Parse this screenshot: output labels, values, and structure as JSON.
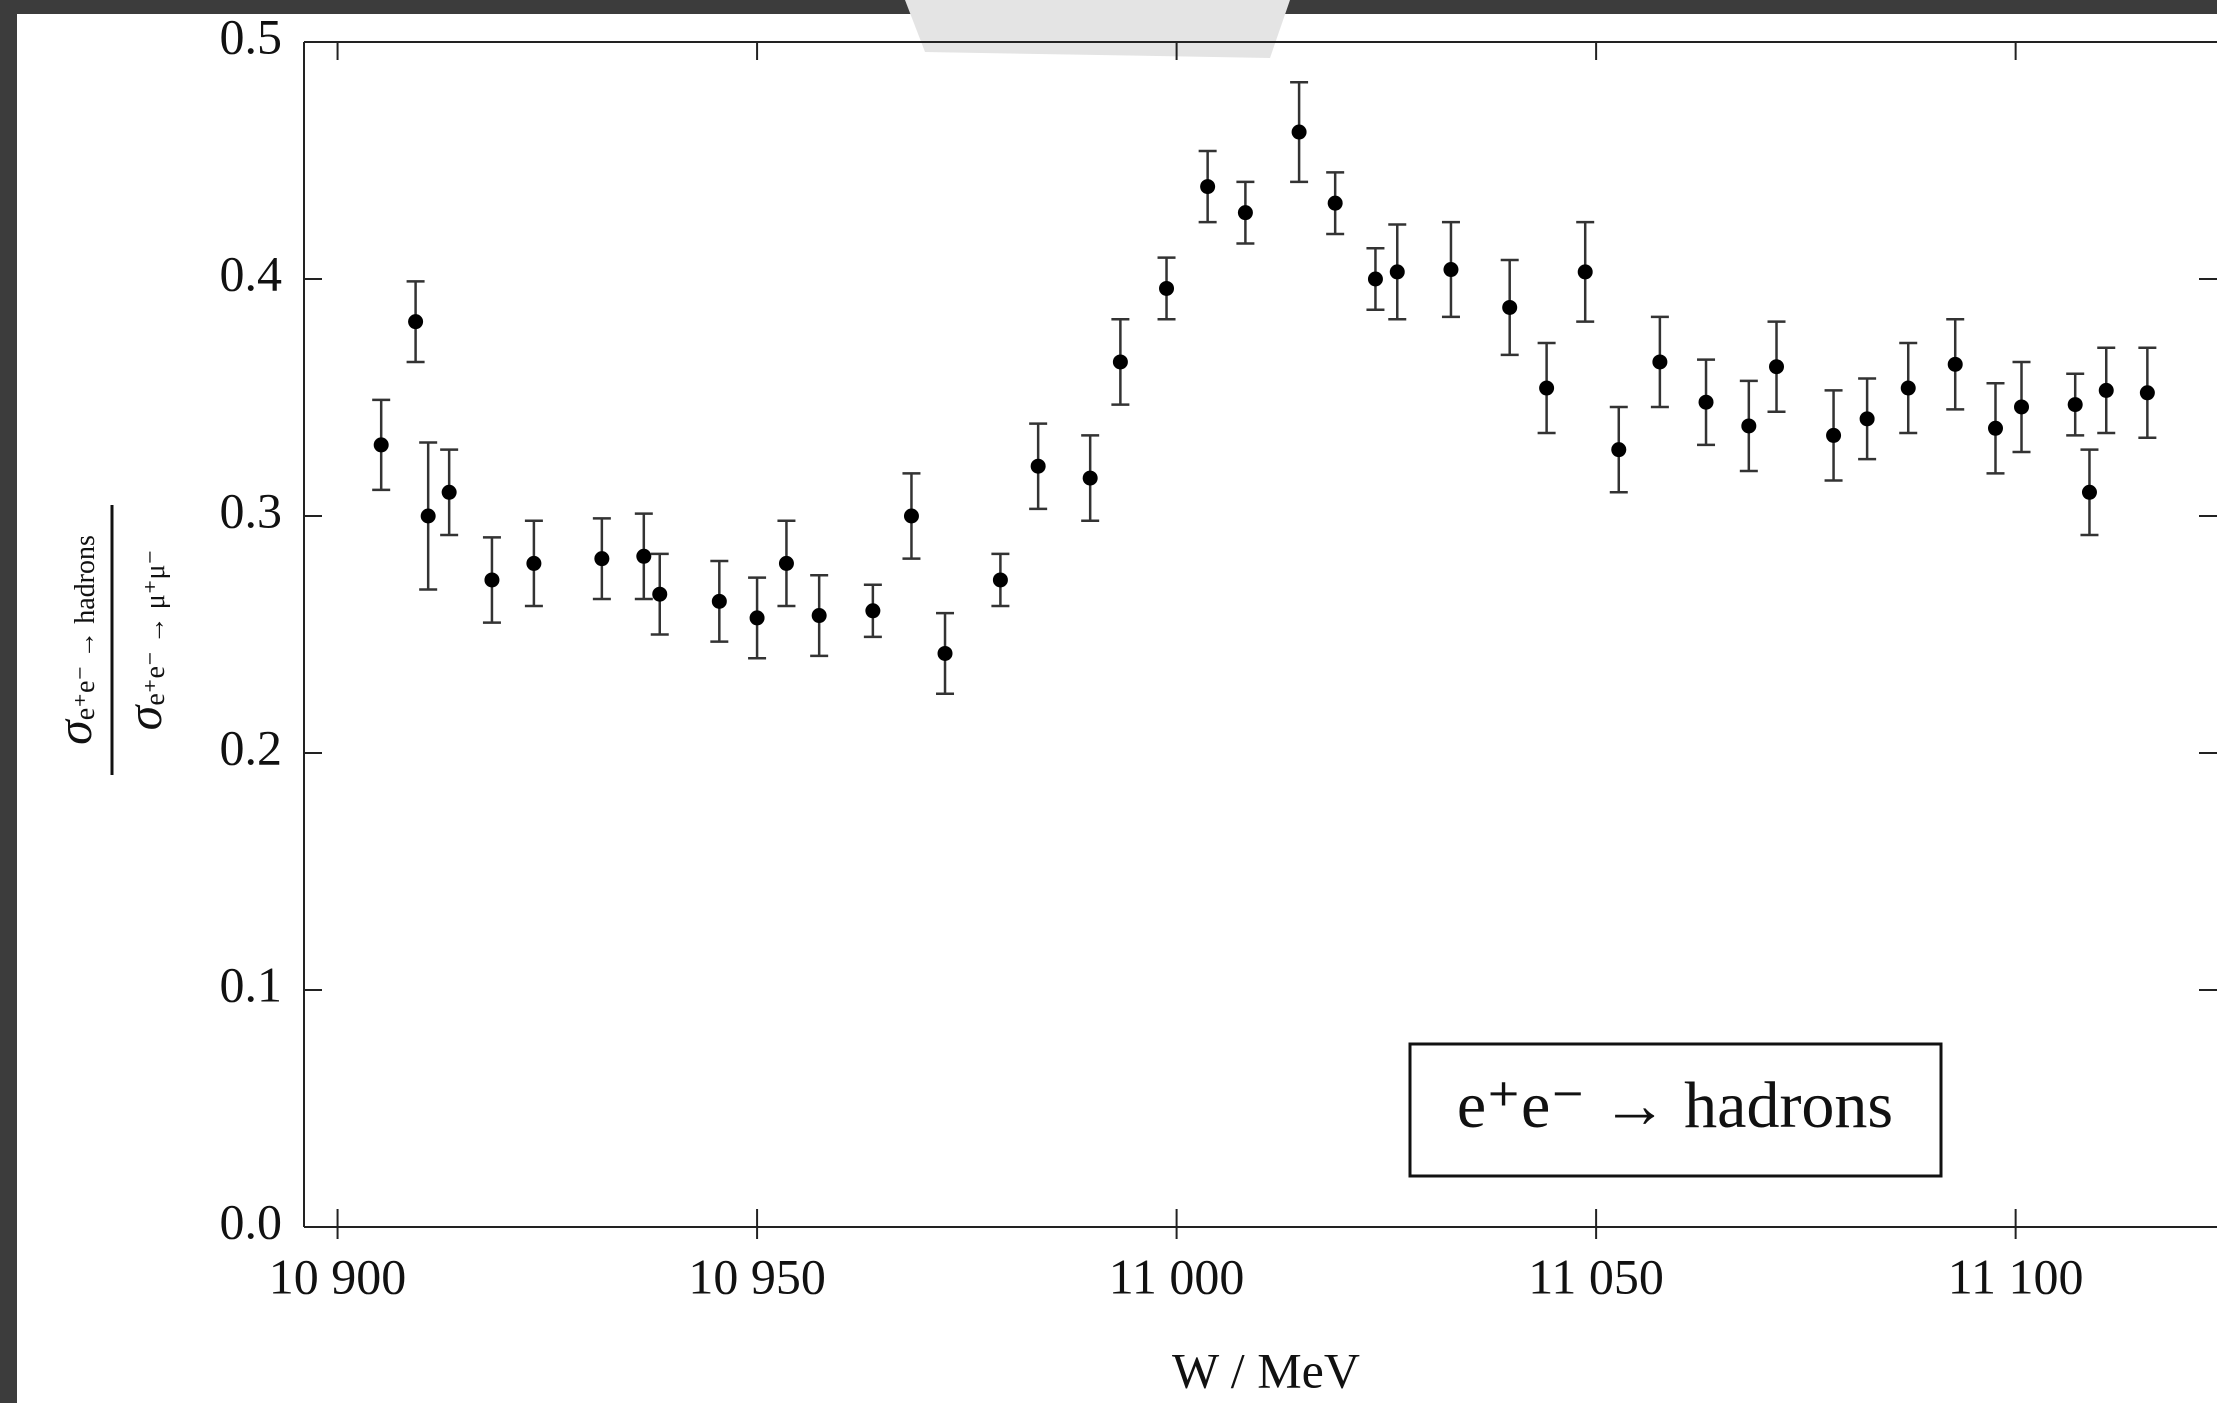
{
  "chart_data": {
    "type": "scatter",
    "xlabel": "W / MeV",
    "ylabel": {
      "numerator": "σ",
      "numerator_sub": "e⁺e⁻ → hadrons",
      "denominator": "σ",
      "denominator_sub": "e⁺e⁻ → μ⁺μ⁻"
    },
    "annotation": "e⁺e⁻ → hadrons",
    "color": "#000000",
    "xlim": [
      10896,
      11124
    ],
    "ylim": [
      0,
      0.5
    ],
    "xticks": [
      {
        "value": 10900,
        "label": "10 900"
      },
      {
        "value": 10950,
        "label": "10 950"
      },
      {
        "value": 11000,
        "label": "11 000"
      },
      {
        "value": 11050,
        "label": "11 050"
      },
      {
        "value": 11100,
        "label": "11 100"
      }
    ],
    "yticks": [
      {
        "value": 0,
        "label": "0.0"
      },
      0.1,
      0.2,
      0.3,
      0.4,
      0.5
    ],
    "x": [
      10905.2,
      10909.3,
      10910.8,
      10913.3,
      10918.4,
      10923.4,
      10931.5,
      10936.5,
      10938.4,
      10945.5,
      10950.0,
      10953.5,
      10957.4,
      10963.8,
      10968.4,
      10972.4,
      10979.0,
      10983.5,
      10989.7,
      10993.3,
      10998.8,
      11003.7,
      11008.2,
      11014.6,
      11018.9,
      11023.7,
      11026.3,
      11032.7,
      11039.7,
      11044.1,
      11048.7,
      11052.7,
      11057.6,
      11063.1,
      11068.2,
      11071.5,
      11078.3,
      11082.3,
      11087.2,
      11092.8,
      11097.6,
      11100.7,
      11107.1,
      11108.8,
      11110.8,
      11115.7
    ],
    "values": [
      0.33,
      0.382,
      0.3,
      0.31,
      0.273,
      0.28,
      0.282,
      0.283,
      0.267,
      0.264,
      0.257,
      0.28,
      0.258,
      0.26,
      0.3,
      0.242,
      0.273,
      0.321,
      0.316,
      0.365,
      0.396,
      0.439,
      0.428,
      0.462,
      0.432,
      0.4,
      0.403,
      0.404,
      0.388,
      0.354,
      0.403,
      0.328,
      0.365,
      0.348,
      0.338,
      0.363,
      0.334,
      0.341,
      0.354,
      0.364,
      0.337,
      0.346,
      0.347,
      0.31,
      0.353,
      0.352
    ],
    "errors": [
      0.019,
      0.017,
      0.031,
      0.018,
      0.018,
      0.018,
      0.017,
      0.018,
      0.017,
      0.017,
      0.017,
      0.018,
      0.017,
      0.011,
      0.018,
      0.017,
      0.011,
      0.018,
      0.018,
      0.018,
      0.013,
      0.015,
      0.013,
      0.021,
      0.013,
      0.013,
      0.02,
      0.02,
      0.02,
      0.019,
      0.021,
      0.018,
      0.019,
      0.018,
      0.019,
      0.019,
      0.019,
      0.017,
      0.019,
      0.019,
      0.019,
      0.019,
      0.013,
      0.018,
      0.018,
      0.019
    ]
  }
}
